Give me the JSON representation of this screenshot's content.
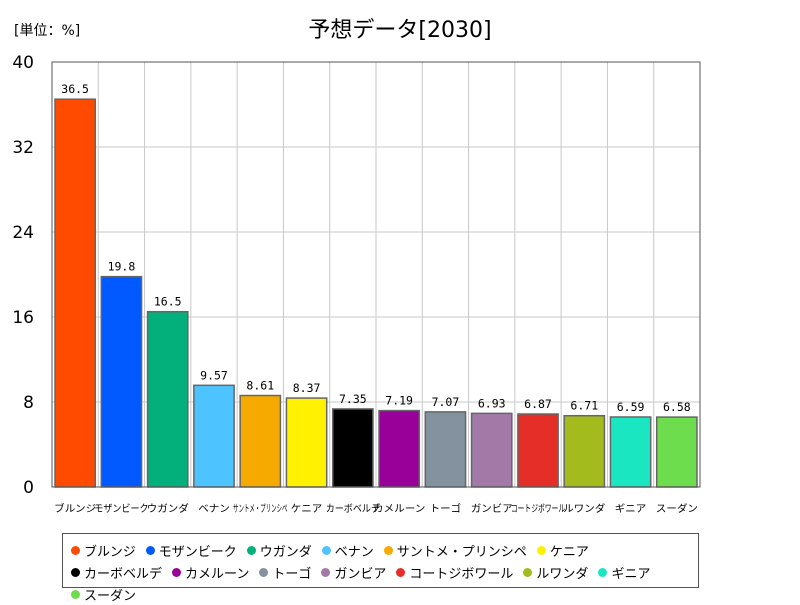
{
  "unit_label": "[単位：%]",
  "chart_data": {
    "type": "bar",
    "title": "予想データ[2030]",
    "xlabel": "",
    "ylabel": "",
    "ylim": [
      0,
      40
    ],
    "yticks": [
      0,
      8,
      16,
      24,
      32,
      40
    ],
    "grid": true,
    "legend_position": "bottom",
    "categories": [
      "ブルンジ",
      "モザンビーク",
      "ウガンダ",
      "ベナン",
      "サントメ・プリンシペ",
      "ケニア",
      "カーボベルデ",
      "カメルーン",
      "トーゴ",
      "ガンビア",
      "コートジボワール",
      "ルワンダ",
      "ギニア",
      "スーダン"
    ],
    "values": [
      36.5,
      19.8,
      16.5,
      9.57,
      8.61,
      8.37,
      7.35,
      7.19,
      7.07,
      6.93,
      6.87,
      6.71,
      6.59,
      6.58
    ],
    "value_labels": [
      "36.5",
      "19.8",
      "16.5",
      "9.57",
      "8.61",
      "8.37",
      "7.35",
      "7.19",
      "7.07",
      "6.93",
      "6.87",
      "6.71",
      "6.59",
      "6.58"
    ],
    "colors": [
      "#ff4b00",
      "#005aff",
      "#03af7a",
      "#4dc4ff",
      "#f6aa00",
      "#fff100",
      "#000000",
      "#990099",
      "#84919e",
      "#a37aa7",
      "#e62e28",
      "#a3bb1c",
      "#1ae6c1",
      "#6ddd4d"
    ]
  }
}
